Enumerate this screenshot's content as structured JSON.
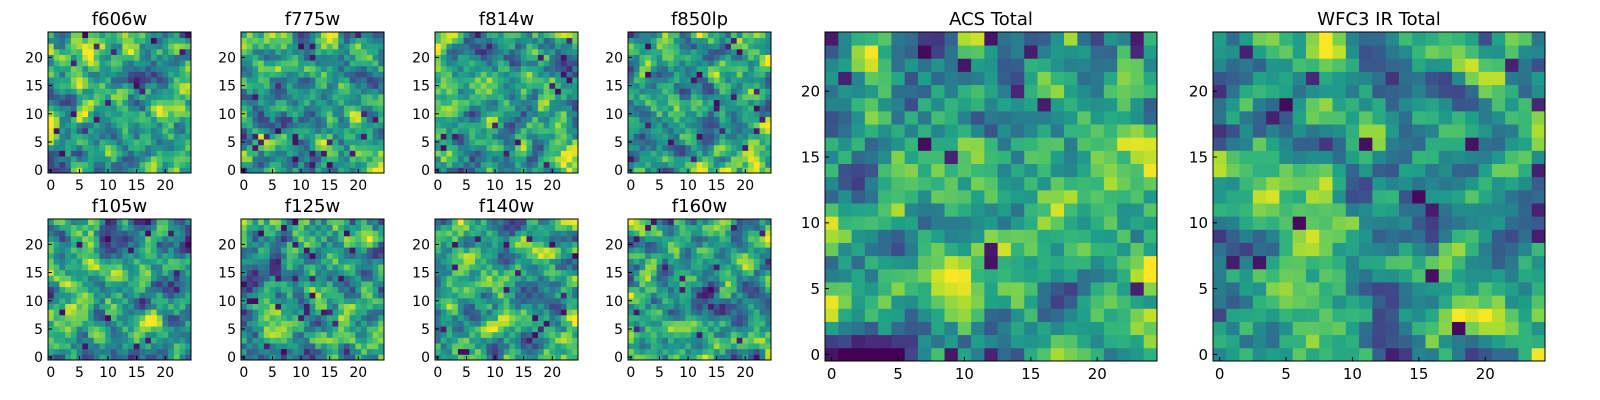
{
  "chart_data": [
    {
      "type": "heatmap",
      "title": "f606w",
      "xlabel": "",
      "ylabel": "",
      "x_ticks": [
        "0",
        "5",
        "10",
        "15",
        "20"
      ],
      "y_ticks": [
        "0",
        "5",
        "10",
        "15",
        "20"
      ],
      "grid_size": [
        25,
        25
      ],
      "colormap": "viridis",
      "seed": 11
    },
    {
      "type": "heatmap",
      "title": "f775w",
      "xlabel": "",
      "ylabel": "",
      "x_ticks": [
        "0",
        "5",
        "10",
        "15",
        "20"
      ],
      "y_ticks": [
        "0",
        "5",
        "10",
        "15",
        "20"
      ],
      "grid_size": [
        25,
        25
      ],
      "colormap": "viridis",
      "seed": 23
    },
    {
      "type": "heatmap",
      "title": "f814w",
      "xlabel": "",
      "ylabel": "",
      "x_ticks": [
        "0",
        "5",
        "10",
        "15",
        "20"
      ],
      "y_ticks": [
        "0",
        "5",
        "10",
        "15",
        "20"
      ],
      "grid_size": [
        25,
        25
      ],
      "colormap": "viridis",
      "seed": 37
    },
    {
      "type": "heatmap",
      "title": "f850lp",
      "xlabel": "",
      "ylabel": "",
      "x_ticks": [
        "0",
        "5",
        "10",
        "15",
        "20"
      ],
      "y_ticks": [
        "0",
        "5",
        "10",
        "15",
        "20"
      ],
      "grid_size": [
        25,
        25
      ],
      "colormap": "viridis",
      "seed": 41
    },
    {
      "type": "heatmap",
      "title": "f105w",
      "xlabel": "",
      "ylabel": "",
      "x_ticks": [
        "0",
        "5",
        "10",
        "15",
        "20"
      ],
      "y_ticks": [
        "0",
        "5",
        "10",
        "15",
        "20"
      ],
      "grid_size": [
        25,
        25
      ],
      "colormap": "viridis",
      "seed": 53
    },
    {
      "type": "heatmap",
      "title": "f125w",
      "xlabel": "",
      "ylabel": "",
      "x_ticks": [
        "0",
        "5",
        "10",
        "15",
        "20"
      ],
      "y_ticks": [
        "0",
        "5",
        "10",
        "15",
        "20"
      ],
      "grid_size": [
        25,
        25
      ],
      "colormap": "viridis",
      "seed": 67
    },
    {
      "type": "heatmap",
      "title": "f140w",
      "xlabel": "",
      "ylabel": "",
      "x_ticks": [
        "0",
        "5",
        "10",
        "15",
        "20"
      ],
      "y_ticks": [
        "0",
        "5",
        "10",
        "15",
        "20"
      ],
      "grid_size": [
        25,
        25
      ],
      "colormap": "viridis",
      "seed": 71
    },
    {
      "type": "heatmap",
      "title": "f160w",
      "xlabel": "",
      "ylabel": "",
      "x_ticks": [
        "0",
        "5",
        "10",
        "15",
        "20"
      ],
      "y_ticks": [
        "0",
        "5",
        "10",
        "15",
        "20"
      ],
      "grid_size": [
        25,
        25
      ],
      "colormap": "viridis",
      "seed": 83
    },
    {
      "type": "heatmap",
      "title": "ACS Total",
      "xlabel": "",
      "ylabel": "",
      "x_ticks": [
        "0",
        "5",
        "10",
        "15",
        "20"
      ],
      "y_ticks": [
        "0",
        "5",
        "10",
        "15",
        "20"
      ],
      "grid_size": [
        25,
        25
      ],
      "colormap": "viridis",
      "seed": 97
    },
    {
      "type": "heatmap",
      "title": "WFC3 IR Total",
      "xlabel": "",
      "ylabel": "",
      "x_ticks": [
        "0",
        "5",
        "10",
        "15",
        "20"
      ],
      "y_ticks": [
        "0",
        "5",
        "10",
        "15",
        "20"
      ],
      "grid_size": [
        25,
        25
      ],
      "colormap": "viridis",
      "seed": 101
    }
  ]
}
